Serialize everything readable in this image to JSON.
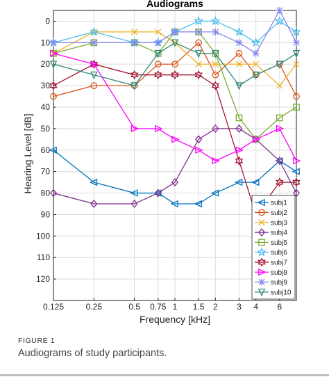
{
  "figure": {
    "label": "FIGURE 1",
    "caption": "Audiograms of study participants."
  },
  "chart_data": {
    "type": "line",
    "title": "Audiograms",
    "xlabel": "Frequency [kHz]",
    "ylabel": "Hearing Level [dB]",
    "x_scale": "log",
    "xlim": [
      0.125,
      8
    ],
    "ylim": [
      130,
      -5
    ],
    "y_reversed": true,
    "grid": true,
    "legend_position": "bottom-right",
    "x_ticks": [
      0.125,
      0.25,
      0.5,
      0.75,
      1,
      1.5,
      2,
      3,
      4,
      6
    ],
    "x_tick_labels": [
      "0.125",
      "0.25",
      "0.5",
      "0.75",
      "1",
      "1.5",
      "2",
      "3",
      "4",
      "6"
    ],
    "y_ticks": [
      0,
      10,
      20,
      30,
      40,
      50,
      60,
      70,
      80,
      90,
      100,
      110,
      120
    ],
    "y_tick_labels": [
      "0",
      "10",
      "20",
      "30",
      "40",
      "50",
      "60",
      "70",
      "80",
      "90",
      "100",
      "110",
      "120"
    ],
    "x": [
      0.125,
      0.25,
      0.5,
      0.75,
      1,
      1.5,
      2,
      3,
      4,
      6,
      8
    ],
    "series": [
      {
        "name": "subj1",
        "color": "#0072BD",
        "marker": "triangle-left",
        "values": [
          60,
          75,
          80,
          80,
          85,
          85,
          80,
          75,
          75,
          65,
          70
        ]
      },
      {
        "name": "subj2",
        "color": "#D95319",
        "marker": "circle",
        "values": [
          35,
          30,
          30,
          20,
          20,
          10,
          25,
          15,
          25,
          20,
          35
        ]
      },
      {
        "name": "subj3",
        "color": "#EDB120",
        "marker": "x",
        "values": [
          15,
          5,
          5,
          5,
          10,
          20,
          20,
          20,
          20,
          30,
          20
        ]
      },
      {
        "name": "subj4",
        "color": "#7E2F8E",
        "marker": "diamond",
        "values": [
          80,
          85,
          85,
          80,
          75,
          55,
          50,
          50,
          55,
          65,
          80
        ]
      },
      {
        "name": "subj5",
        "color": "#77AC30",
        "marker": "square",
        "values": [
          15,
          10,
          10,
          15,
          5,
          5,
          15,
          45,
          55,
          45,
          40
        ]
      },
      {
        "name": "subj6",
        "color": "#4DBEEE",
        "marker": "pentagram",
        "values": [
          10,
          5,
          10,
          10,
          5,
          0,
          0,
          5,
          10,
          0,
          5
        ]
      },
      {
        "name": "subj7",
        "color": "#A2142F",
        "marker": "hexagram",
        "values": [
          30,
          20,
          25,
          25,
          25,
          25,
          30,
          65,
          90,
          75,
          75
        ]
      },
      {
        "name": "subj8",
        "color": "#FF00FF",
        "marker": "triangle-right",
        "values": [
          15,
          20,
          50,
          50,
          55,
          60,
          65,
          60,
          55,
          50,
          65
        ]
      },
      {
        "name": "subj9",
        "color": "#8888EE",
        "marker": "asterisk",
        "values": [
          10,
          10,
          10,
          10,
          5,
          5,
          5,
          10,
          15,
          -5,
          10
        ]
      },
      {
        "name": "subj10",
        "color": "#2E8B7A",
        "marker": "triangle-down",
        "values": [
          20,
          25,
          30,
          15,
          10,
          15,
          15,
          30,
          25,
          20,
          15
        ]
      }
    ]
  }
}
